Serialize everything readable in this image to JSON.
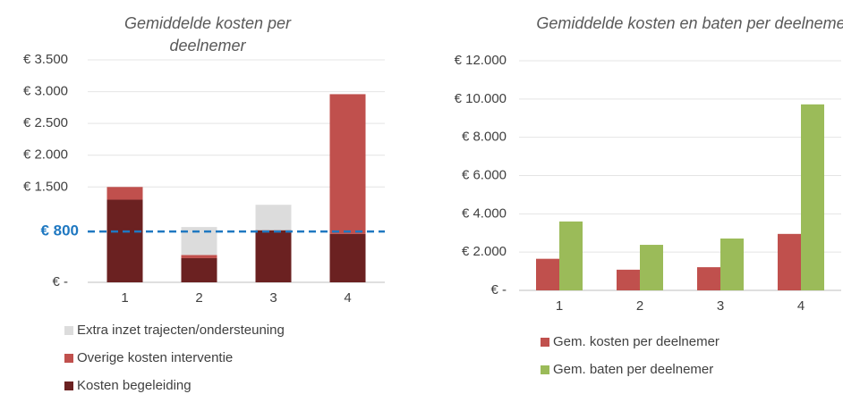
{
  "chart_data": [
    {
      "type": "stacked_bar",
      "title": "Gemiddelde kosten per deelnemer",
      "categories": [
        "1",
        "2",
        "3",
        "4"
      ],
      "series": [
        {
          "name": "Kosten begeleiding",
          "color": "#6b2121",
          "values": [
            1300,
            380,
            820,
            760
          ]
        },
        {
          "name": "Overige kosten interventie",
          "color": "#c0504d",
          "values": [
            200,
            50,
            0,
            2200
          ]
        },
        {
          "name": "Extra inzet trajecten/ondersteuning",
          "color": "#dcdcdc",
          "values": [
            0,
            440,
            400,
            0
          ]
        }
      ],
      "ylim": [
        0,
        3500
      ],
      "yticks": [
        {
          "value": 0,
          "label": "€ -"
        },
        {
          "value": 1500,
          "label": "€ 1.500"
        },
        {
          "value": 2000,
          "label": "€ 2.000"
        },
        {
          "value": 2500,
          "label": "€ 2.500"
        },
        {
          "value": 3000,
          "label": "€ 3.000"
        },
        {
          "value": 3500,
          "label": "€ 3.500"
        }
      ],
      "grid": true,
      "annotations": [
        {
          "value": 800,
          "label": "€ 800",
          "color": "#1f78c1"
        }
      ]
    },
    {
      "type": "bar",
      "title": "Gemiddelde kosten en baten per deelnemer",
      "categories": [
        "1",
        "2",
        "3",
        "4"
      ],
      "series": [
        {
          "name": "Gem. kosten per deelnemer",
          "color": "#c0504d",
          "values": [
            1650,
            1080,
            1210,
            2950
          ]
        },
        {
          "name": "Gem. baten per deelnemer",
          "color": "#9bbb59",
          "values": [
            3600,
            2380,
            2710,
            9720
          ]
        }
      ],
      "ylim": [
        0,
        12000
      ],
      "yticks": [
        {
          "value": 0,
          "label": "€ -"
        },
        {
          "value": 2000,
          "label": "€ 2.000"
        },
        {
          "value": 4000,
          "label": "€ 4.000"
        },
        {
          "value": 6000,
          "label": "€ 6.000"
        },
        {
          "value": 8000,
          "label": "€ 8.000"
        },
        {
          "value": 10000,
          "label": "€ 10.000"
        },
        {
          "value": 12000,
          "label": "€ 12.000"
        }
      ],
      "grid": true
    }
  ]
}
